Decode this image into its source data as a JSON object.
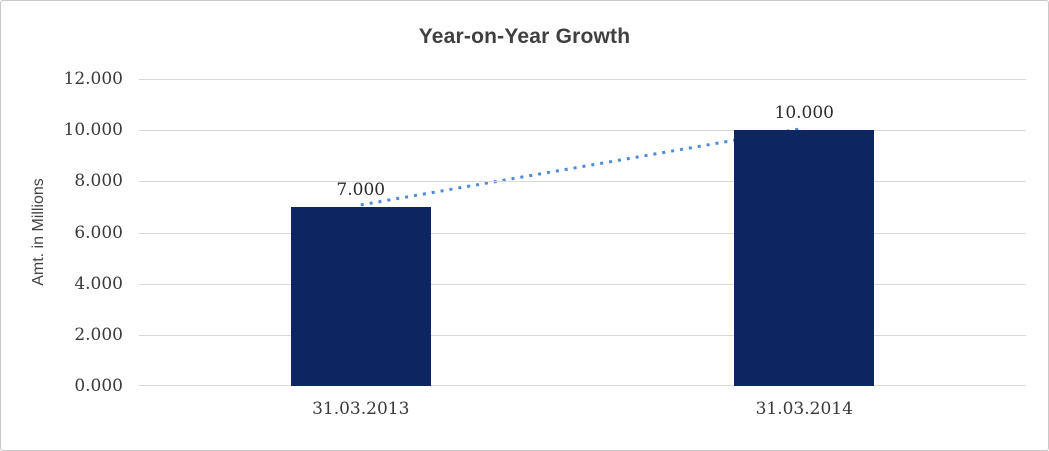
{
  "chart_data": {
    "type": "bar",
    "title": "Year-on-Year Growth",
    "xlabel": "",
    "ylabel": "Amt. in Millions",
    "categories": [
      "31.03.2013",
      "31.03.2014"
    ],
    "values": [
      7000,
      10000
    ],
    "data_labels": [
      "7.000",
      "10.000"
    ],
    "y_tick_labels": [
      "0.000",
      "2.000",
      "4.000",
      "6.000",
      "8.000",
      "10.000",
      "12.000"
    ],
    "y_tick_values": [
      0,
      2000,
      4000,
      6000,
      8000,
      10000,
      12000
    ],
    "ylim": [
      0,
      12000
    ],
    "grid": true,
    "legend": false,
    "bar_color": "#0d2560",
    "trendline": {
      "style": "dotted",
      "color": "#4e8ad8",
      "from_category": "31.03.2013",
      "to_category": "31.03.2014"
    },
    "gridline_color": "#d9d9d9",
    "title_color": "#404040",
    "frame_border_color": "#c9c9c9"
  }
}
